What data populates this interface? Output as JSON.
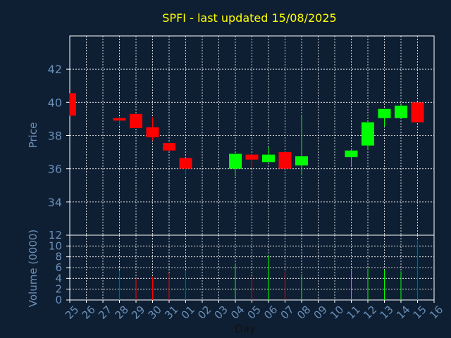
{
  "chart_data": [
    {
      "type": "candlestick",
      "title": "SPFI - last updated 15/08/2025",
      "ylabel": "Price",
      "ylim": [
        32,
        44
      ],
      "yticks": [
        34,
        36,
        38,
        40,
        42
      ],
      "grid": true,
      "categories": [
        "25",
        "26",
        "27",
        "28",
        "29",
        "30",
        "31",
        "01",
        "02",
        "03",
        "04",
        "05",
        "06",
        "07",
        "08",
        "09",
        "10",
        "11",
        "12",
        "13",
        "14",
        "15",
        "16"
      ],
      "candles": [
        {
          "x": "25",
          "open": 40.55,
          "high": 40.55,
          "low": 39.2,
          "close": 39.2,
          "direction": "down"
        },
        {
          "x": "28",
          "open": 39.05,
          "high": 39.15,
          "low": 38.6,
          "close": 38.9,
          "direction": "down"
        },
        {
          "x": "29",
          "open": 39.3,
          "high": 39.3,
          "low": 38.45,
          "close": 38.45,
          "direction": "down"
        },
        {
          "x": "30",
          "open": 38.5,
          "high": 39.1,
          "low": 37.7,
          "close": 37.9,
          "direction": "down"
        },
        {
          "x": "31",
          "open": 37.55,
          "high": 37.55,
          "low": 37.05,
          "close": 37.1,
          "direction": "down"
        },
        {
          "x": "01",
          "open": 36.65,
          "high": 36.65,
          "low": 35.6,
          "close": 36.0,
          "direction": "down"
        },
        {
          "x": "04",
          "open": 36.0,
          "high": 36.9,
          "low": 35.55,
          "close": 36.9,
          "direction": "up"
        },
        {
          "x": "05",
          "open": 36.85,
          "high": 36.85,
          "low": 36.05,
          "close": 36.55,
          "direction": "down"
        },
        {
          "x": "06",
          "open": 36.4,
          "high": 37.3,
          "low": 36.4,
          "close": 36.85,
          "direction": "up"
        },
        {
          "x": "07",
          "open": 37.0,
          "high": 37.0,
          "low": 36.0,
          "close": 36.0,
          "direction": "down"
        },
        {
          "x": "08",
          "open": 36.2,
          "high": 39.2,
          "low": 35.6,
          "close": 36.75,
          "direction": "up"
        },
        {
          "x": "11",
          "open": 36.7,
          "high": 37.2,
          "low": 36.1,
          "close": 37.1,
          "direction": "up"
        },
        {
          "x": "12",
          "open": 37.4,
          "high": 38.8,
          "low": 37.15,
          "close": 38.8,
          "direction": "up"
        },
        {
          "x": "13",
          "open": 39.05,
          "high": 39.6,
          "low": 38.55,
          "close": 39.6,
          "direction": "up"
        },
        {
          "x": "14",
          "open": 39.05,
          "high": 39.85,
          "low": 39.05,
          "close": 39.8,
          "direction": "up"
        },
        {
          "x": "15",
          "open": 40.0,
          "high": 40.0,
          "low": 38.8,
          "close": 38.8,
          "direction": "down"
        }
      ],
      "colors": {
        "up": "#00ff00",
        "down": "#ff0000",
        "grid": "#ffffff",
        "axis_text": "#6a8fb8",
        "title": "#ffff00",
        "background": "#0f1f33"
      }
    },
    {
      "type": "bar",
      "ylabel": "Volume (0000)",
      "xlabel": "Day",
      "ylim": [
        0,
        12
      ],
      "yticks": [
        0,
        2,
        4,
        6,
        8,
        10,
        12
      ],
      "grid": true,
      "categories": [
        "25",
        "26",
        "27",
        "28",
        "29",
        "30",
        "31",
        "01",
        "02",
        "03",
        "04",
        "05",
        "06",
        "07",
        "08",
        "09",
        "10",
        "11",
        "12",
        "13",
        "14",
        "15",
        "16"
      ],
      "bars": [
        {
          "x": "28",
          "value": 5.5,
          "direction": "down"
        },
        {
          "x": "29",
          "value": 4.0,
          "direction": "down"
        },
        {
          "x": "30",
          "value": 4.3,
          "direction": "down"
        },
        {
          "x": "31",
          "value": 5.0,
          "direction": "down"
        },
        {
          "x": "01",
          "value": 5.4,
          "direction": "down"
        },
        {
          "x": "04",
          "value": 6.8,
          "direction": "up"
        },
        {
          "x": "05",
          "value": 4.4,
          "direction": "down"
        },
        {
          "x": "06",
          "value": 8.3,
          "direction": "up"
        },
        {
          "x": "07",
          "value": 5.3,
          "direction": "down"
        },
        {
          "x": "08",
          "value": 4.8,
          "direction": "up"
        },
        {
          "x": "11",
          "value": 5.4,
          "direction": "up"
        },
        {
          "x": "12",
          "value": 5.8,
          "direction": "up"
        },
        {
          "x": "13",
          "value": 5.6,
          "direction": "up"
        },
        {
          "x": "14",
          "value": 5.3,
          "direction": "up"
        },
        {
          "x": "15",
          "value": 11.0,
          "direction": "down"
        }
      ]
    }
  ]
}
